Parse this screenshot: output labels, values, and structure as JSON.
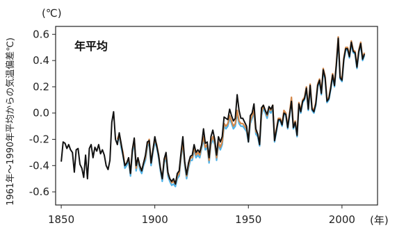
{
  "chart_data": {
    "type": "line",
    "title": "年平均",
    "unit_label": "(℃)",
    "xlabel": "",
    "x_unit": "(年)",
    "ylabel": "1961年〜1990年平均からの気温偏差℃)",
    "xlim": [
      1847,
      2019
    ],
    "ylim": [
      -0.7,
      0.66
    ],
    "x_ticks": [
      1850,
      1900,
      1950,
      2000
    ],
    "x_tick_labels": [
      "1850",
      "1900",
      "1950",
      "2000"
    ],
    "y_ticks": [
      -0.6,
      -0.4,
      -0.2,
      0.0,
      0.2,
      0.4,
      0.6
    ],
    "y_tick_labels": [
      "-0.6",
      "-0.4",
      "-0.2",
      "0.0",
      "0.2",
      "0.4",
      "0.6"
    ],
    "grid": false,
    "colors": {
      "black": "#111111",
      "orange": "#d4884a",
      "blue": "#4fb2e8"
    },
    "series": [
      {
        "color": "#4fb2e8",
        "x": [
          1880,
          1881,
          1882,
          1883,
          1884,
          1885,
          1886,
          1887,
          1888,
          1889,
          1890,
          1891,
          1892,
          1893,
          1894,
          1895,
          1896,
          1897,
          1898,
          1899,
          1900,
          1901,
          1902,
          1903,
          1904,
          1905,
          1906,
          1907,
          1908,
          1909,
          1910,
          1911,
          1912,
          1913,
          1914,
          1915,
          1916,
          1917,
          1918,
          1919,
          1920,
          1921,
          1922,
          1923,
          1924,
          1925,
          1926,
          1927,
          1928,
          1929,
          1930,
          1931,
          1932,
          1933,
          1934,
          1935,
          1936,
          1937,
          1938,
          1939,
          1940,
          1941,
          1942,
          1943,
          1944,
          1945,
          1946,
          1947,
          1948,
          1949,
          1950,
          1951,
          1952,
          1953,
          1954,
          1955,
          1956,
          1957,
          1958,
          1959,
          1960,
          1961,
          1962,
          1963,
          1964,
          1965,
          1966,
          1967,
          1968,
          1969,
          1970,
          1971,
          1972,
          1973,
          1974,
          1975,
          1976,
          1977,
          1978,
          1979,
          1980,
          1981,
          1982,
          1983,
          1984,
          1985,
          1986,
          1987,
          1988,
          1989,
          1990,
          1991,
          1992,
          1993,
          1994,
          1995,
          1996,
          1997,
          1998,
          1999,
          2000,
          2001,
          2002,
          2003,
          2004,
          2005,
          2006,
          2007,
          2008,
          2009,
          2010,
          2011,
          2012
        ],
        "y": [
          -0.22,
          -0.18,
          -0.26,
          -0.32,
          -0.42,
          -0.4,
          -0.36,
          -0.48,
          -0.3,
          -0.22,
          -0.44,
          -0.36,
          -0.43,
          -0.46,
          -0.4,
          -0.36,
          -0.26,
          -0.22,
          -0.4,
          -0.3,
          -0.22,
          -0.26,
          -0.34,
          -0.44,
          -0.52,
          -0.38,
          -0.34,
          -0.48,
          -0.52,
          -0.55,
          -0.54,
          -0.56,
          -0.5,
          -0.48,
          -0.34,
          -0.24,
          -0.4,
          -0.5,
          -0.42,
          -0.36,
          -0.36,
          -0.28,
          -0.34,
          -0.32,
          -0.34,
          -0.27,
          -0.2,
          -0.28,
          -0.26,
          -0.38,
          -0.24,
          -0.2,
          -0.24,
          -0.36,
          -0.24,
          -0.28,
          -0.24,
          -0.1,
          -0.12,
          -0.1,
          -0.04,
          -0.08,
          -0.12,
          -0.1,
          0.0,
          -0.08,
          -0.1,
          -0.1,
          -0.12,
          -0.14,
          -0.22,
          -0.08,
          -0.04,
          0.0,
          -0.16,
          -0.18,
          -0.25,
          -0.02,
          0.04,
          0.0,
          -0.04,
          0.02,
          0.0,
          0.04,
          -0.22,
          -0.14,
          -0.06,
          -0.06,
          -0.1,
          0.0,
          -0.02,
          -0.12,
          -0.02,
          0.1,
          -0.12,
          -0.08,
          -0.18,
          0.06,
          0.0,
          0.08,
          0.1,
          0.18,
          0.02,
          0.2,
          0.02,
          0.0,
          0.06,
          0.2,
          0.24,
          0.14,
          0.32,
          0.26,
          0.08,
          0.1,
          0.18,
          0.28,
          0.2,
          0.36,
          0.56,
          0.26,
          0.24,
          0.4,
          0.48,
          0.48,
          0.42,
          0.53,
          0.46,
          0.45,
          0.34,
          0.46,
          0.52,
          0.4,
          0.44
        ]
      },
      {
        "color": "#d4884a",
        "x": [
          1880,
          1881,
          1882,
          1883,
          1884,
          1885,
          1886,
          1887,
          1888,
          1889,
          1890,
          1891,
          1892,
          1893,
          1894,
          1895,
          1896,
          1897,
          1898,
          1899,
          1900,
          1901,
          1902,
          1903,
          1904,
          1905,
          1906,
          1907,
          1908,
          1909,
          1910,
          1911,
          1912,
          1913,
          1914,
          1915,
          1916,
          1917,
          1918,
          1919,
          1920,
          1921,
          1922,
          1923,
          1924,
          1925,
          1926,
          1927,
          1928,
          1929,
          1930,
          1931,
          1932,
          1933,
          1934,
          1935,
          1936,
          1937,
          1938,
          1939,
          1940,
          1941,
          1942,
          1943,
          1944,
          1945,
          1946,
          1947,
          1948,
          1949,
          1950,
          1951,
          1952,
          1953,
          1954,
          1955,
          1956,
          1957,
          1958,
          1959,
          1960,
          1961,
          1962,
          1963,
          1964,
          1965,
          1966,
          1967,
          1968,
          1969,
          1970,
          1971,
          1972,
          1973,
          1974,
          1975,
          1976,
          1977,
          1978,
          1979,
          1980,
          1981,
          1982,
          1983,
          1984,
          1985,
          1986,
          1987,
          1988,
          1989,
          1990,
          1991,
          1992,
          1993,
          1994,
          1995,
          1996,
          1997,
          1998,
          1999,
          2000,
          2001,
          2002,
          2003,
          2004,
          2005,
          2006,
          2007,
          2008,
          2009,
          2010,
          2011,
          2012
        ],
        "y": [
          -0.2,
          -0.16,
          -0.24,
          -0.3,
          -0.4,
          -0.38,
          -0.34,
          -0.46,
          -0.28,
          -0.2,
          -0.42,
          -0.34,
          -0.41,
          -0.44,
          -0.38,
          -0.34,
          -0.24,
          -0.2,
          -0.38,
          -0.28,
          -0.2,
          -0.24,
          -0.32,
          -0.42,
          -0.5,
          -0.36,
          -0.32,
          -0.46,
          -0.5,
          -0.53,
          -0.52,
          -0.54,
          -0.48,
          -0.46,
          -0.32,
          -0.22,
          -0.38,
          -0.48,
          -0.4,
          -0.34,
          -0.34,
          -0.26,
          -0.32,
          -0.3,
          -0.32,
          -0.25,
          -0.18,
          -0.26,
          -0.24,
          -0.36,
          -0.22,
          -0.18,
          -0.22,
          -0.34,
          -0.22,
          -0.26,
          -0.22,
          -0.08,
          -0.1,
          -0.08,
          -0.02,
          -0.06,
          -0.1,
          -0.08,
          0.02,
          -0.06,
          -0.08,
          -0.08,
          -0.1,
          -0.12,
          -0.2,
          -0.06,
          -0.02,
          0.02,
          -0.14,
          -0.16,
          -0.23,
          0.0,
          0.06,
          0.02,
          -0.02,
          0.04,
          0.02,
          0.06,
          -0.2,
          -0.12,
          -0.04,
          -0.04,
          -0.08,
          0.02,
          0.0,
          -0.1,
          0.0,
          0.12,
          -0.1,
          -0.06,
          -0.16,
          0.08,
          0.02,
          0.1,
          0.12,
          0.2,
          0.04,
          0.22,
          0.04,
          0.02,
          0.08,
          0.22,
          0.26,
          0.16,
          0.34,
          0.28,
          0.1,
          0.12,
          0.2,
          0.3,
          0.22,
          0.38,
          0.58,
          0.28,
          0.26,
          0.42,
          0.5,
          0.5,
          0.44,
          0.55,
          0.48,
          0.47,
          0.36,
          0.48,
          0.54,
          0.42,
          0.46
        ]
      },
      {
        "color": "#111111",
        "x": [
          1850,
          1851,
          1852,
          1853,
          1854,
          1855,
          1856,
          1857,
          1858,
          1859,
          1860,
          1861,
          1862,
          1863,
          1864,
          1865,
          1866,
          1867,
          1868,
          1869,
          1870,
          1871,
          1872,
          1873,
          1874,
          1875,
          1876,
          1877,
          1878,
          1879,
          1880,
          1881,
          1882,
          1883,
          1884,
          1885,
          1886,
          1887,
          1888,
          1889,
          1890,
          1891,
          1892,
          1893,
          1894,
          1895,
          1896,
          1897,
          1898,
          1899,
          1900,
          1901,
          1902,
          1903,
          1904,
          1905,
          1906,
          1907,
          1908,
          1909,
          1910,
          1911,
          1912,
          1913,
          1914,
          1915,
          1916,
          1917,
          1918,
          1919,
          1920,
          1921,
          1922,
          1923,
          1924,
          1925,
          1926,
          1927,
          1928,
          1929,
          1930,
          1931,
          1932,
          1933,
          1934,
          1935,
          1936,
          1937,
          1938,
          1939,
          1940,
          1941,
          1942,
          1943,
          1944,
          1945,
          1946,
          1947,
          1948,
          1949,
          1950,
          1951,
          1952,
          1953,
          1954,
          1955,
          1956,
          1957,
          1958,
          1959,
          1960,
          1961,
          1962,
          1963,
          1964,
          1965,
          1966,
          1967,
          1968,
          1969,
          1970,
          1971,
          1972,
          1973,
          1974,
          1975,
          1976,
          1977,
          1978,
          1979,
          1980,
          1981,
          1982,
          1983,
          1984,
          1985,
          1986,
          1987,
          1988,
          1989,
          1990,
          1991,
          1992,
          1993,
          1994,
          1995,
          1996,
          1997,
          1998,
          1999,
          2000,
          2001,
          2002,
          2003,
          2004,
          2005,
          2006,
          2007,
          2008,
          2009,
          2010,
          2011,
          2012
        ],
        "y": [
          -0.37,
          -0.22,
          -0.23,
          -0.27,
          -0.24,
          -0.28,
          -0.3,
          -0.45,
          -0.28,
          -0.27,
          -0.39,
          -0.42,
          -0.49,
          -0.32,
          -0.5,
          -0.27,
          -0.24,
          -0.34,
          -0.26,
          -0.29,
          -0.24,
          -0.31,
          -0.28,
          -0.32,
          -0.4,
          -0.43,
          -0.36,
          -0.07,
          0.01,
          -0.2,
          -0.24,
          -0.15,
          -0.23,
          -0.32,
          -0.4,
          -0.38,
          -0.34,
          -0.46,
          -0.28,
          -0.19,
          -0.4,
          -0.34,
          -0.4,
          -0.44,
          -0.38,
          -0.32,
          -0.22,
          -0.21,
          -0.38,
          -0.28,
          -0.18,
          -0.25,
          -0.32,
          -0.42,
          -0.5,
          -0.35,
          -0.3,
          -0.45,
          -0.5,
          -0.52,
          -0.5,
          -0.54,
          -0.46,
          -0.44,
          -0.3,
          -0.18,
          -0.37,
          -0.47,
          -0.38,
          -0.33,
          -0.32,
          -0.24,
          -0.3,
          -0.28,
          -0.3,
          -0.24,
          -0.12,
          -0.23,
          -0.22,
          -0.34,
          -0.18,
          -0.13,
          -0.2,
          -0.32,
          -0.18,
          -0.22,
          -0.18,
          -0.03,
          -0.04,
          -0.05,
          0.03,
          -0.02,
          -0.06,
          -0.04,
          0.14,
          0.02,
          -0.04,
          -0.04,
          -0.07,
          -0.1,
          -0.22,
          -0.02,
          0.0,
          0.07,
          -0.12,
          -0.16,
          -0.24,
          0.04,
          0.06,
          0.02,
          -0.01,
          0.05,
          0.03,
          0.06,
          -0.21,
          -0.13,
          -0.05,
          -0.05,
          -0.09,
          0.0,
          -0.01,
          -0.11,
          -0.01,
          0.09,
          -0.11,
          -0.07,
          -0.17,
          0.07,
          0.01,
          0.09,
          0.11,
          0.19,
          0.03,
          0.21,
          0.03,
          0.01,
          0.07,
          0.21,
          0.25,
          0.15,
          0.33,
          0.27,
          0.09,
          0.11,
          0.19,
          0.29,
          0.21,
          0.37,
          0.57,
          0.27,
          0.25,
          0.41,
          0.49,
          0.49,
          0.43,
          0.54,
          0.47,
          0.46,
          0.35,
          0.47,
          0.53,
          0.41,
          0.45
        ]
      }
    ]
  }
}
